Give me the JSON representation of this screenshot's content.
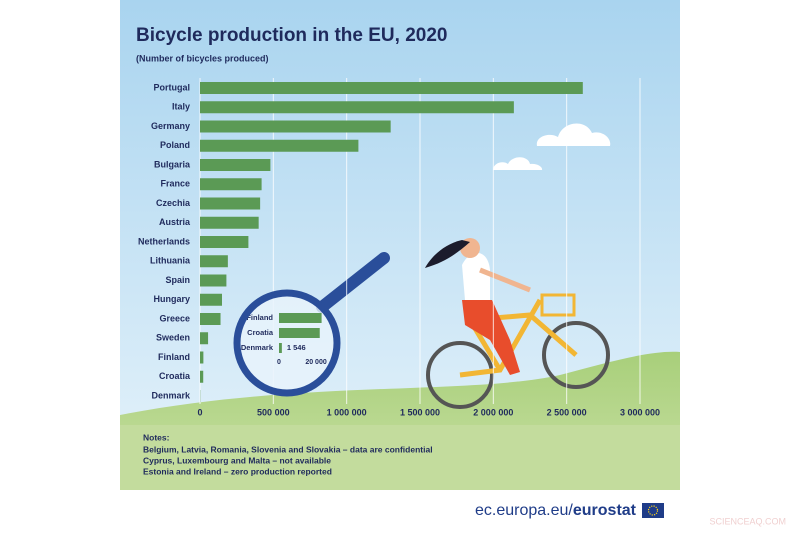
{
  "chart_data": {
    "type": "hbar",
    "title": "Bicycle production in the EU, 2020",
    "subtitle": "(Number of bicycles produced)",
    "categories": [
      "Portugal",
      "Italy",
      "Germany",
      "Poland",
      "Bulgaria",
      "France",
      "Czechia",
      "Austria",
      "Netherlands",
      "Lithuania",
      "Spain",
      "Hungary",
      "Greece",
      "Sweden",
      "Finland",
      "Croatia",
      "Denmark"
    ],
    "values": [
      2610000,
      2140000,
      1300000,
      1080000,
      480000,
      420000,
      410000,
      400000,
      330000,
      190000,
      180000,
      150000,
      140000,
      55000,
      23000,
      22000,
      1546
    ],
    "color": "#5b9a55",
    "xlim": [
      0,
      3000000
    ],
    "xticks": [
      0,
      {
        "value": 500000,
        "label": "500 000"
      },
      {
        "value": 1000000,
        "label": "1 000 000"
      },
      {
        "value": 1500000,
        "label": "1 500 000"
      },
      {
        "value": 2000000,
        "label": "2 000 000"
      },
      {
        "value": 2500000,
        "label": "2 500 000"
      },
      {
        "value": 3000000,
        "label": "3 000 000"
      }
    ],
    "grid": true,
    "inset": {
      "categories": [
        "Finland",
        "Croatia",
        "Denmark"
      ],
      "values": [
        23000,
        22000,
        1546
      ],
      "value_labels": [
        null,
        null,
        "1 546"
      ],
      "xlim": [
        0,
        25000
      ],
      "xticks": [
        0,
        {
          "value": 20000,
          "label": "20 000"
        }
      ]
    },
    "notes": {
      "heading": "Notes:",
      "lines": [
        "Belgium, Latvia, Romania, Slovenia and Slovakia – data are confidential",
        "Cyprus, Luxembourg and Malta – not available",
        "Estonia and Ireland – zero production reported"
      ]
    }
  },
  "footer": {
    "site": "ec.europa.eu/",
    "brand": "eurostat",
    "watermark": "SCIENCEAQ.COM"
  }
}
